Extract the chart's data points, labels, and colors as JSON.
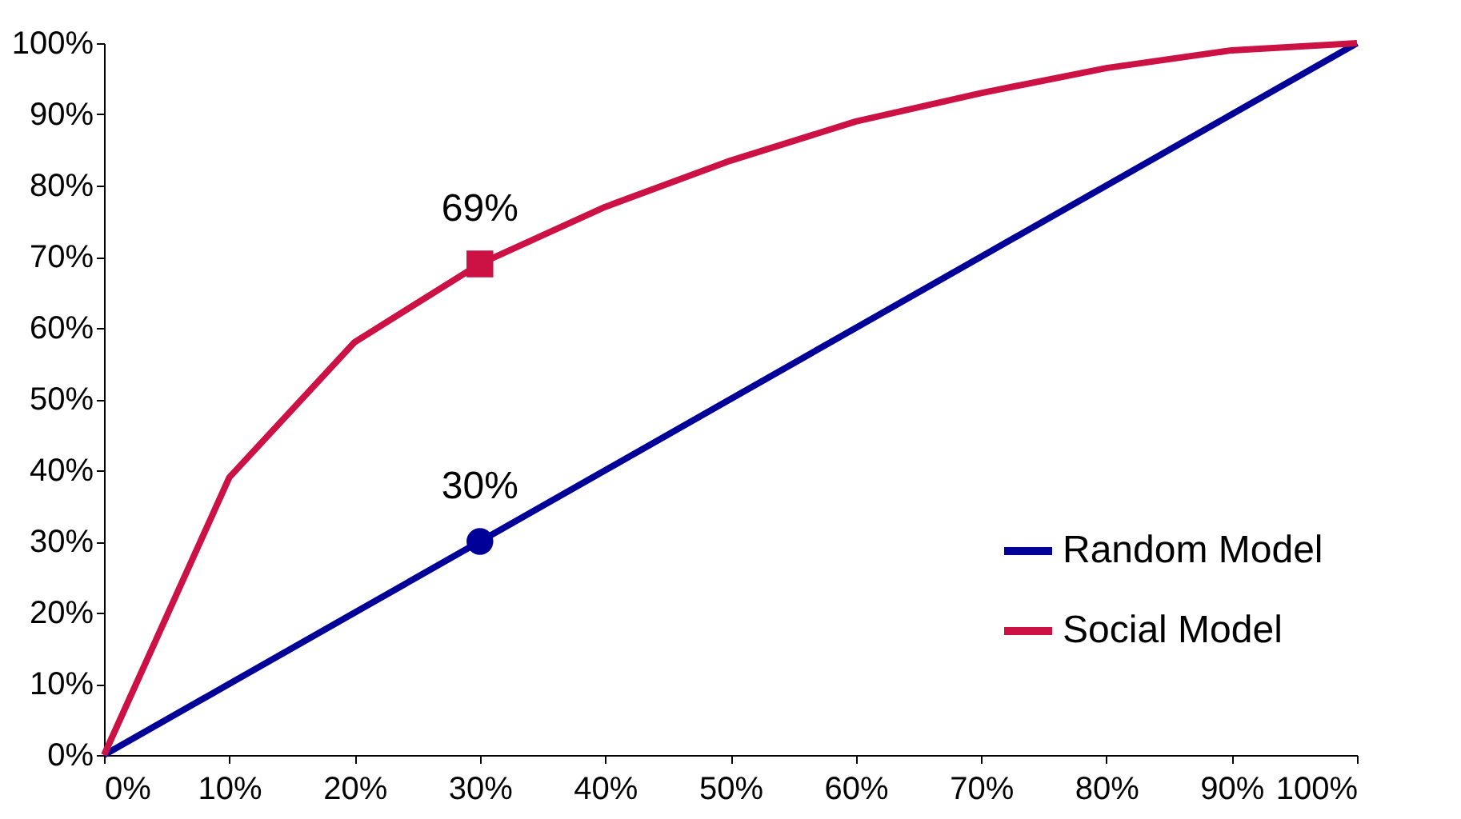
{
  "chart_data": {
    "type": "line",
    "x": [
      0,
      10,
      20,
      30,
      40,
      50,
      60,
      70,
      80,
      90,
      100
    ],
    "series": [
      {
        "name": "Random Model",
        "color": "#000099",
        "values": [
          0,
          10,
          20,
          30,
          40,
          50,
          60,
          70,
          80,
          90,
          100
        ]
      },
      {
        "name": "Social Model",
        "color": "#cc1144",
        "values": [
          0,
          39,
          58,
          69,
          77,
          83.5,
          89,
          93,
          96.5,
          99,
          100
        ]
      },
      {
        "type": "scatter",
        "marker": "circle",
        "color": "#000099",
        "x": [
          30
        ],
        "values": [
          30
        ]
      },
      {
        "type": "scatter",
        "marker": "square",
        "color": "#cc1144",
        "x": [
          30
        ],
        "values": [
          69
        ]
      }
    ],
    "xlim": [
      0,
      100
    ],
    "ylim": [
      0,
      100
    ],
    "xticks": [
      {
        "value": 0,
        "label": "0%"
      },
      {
        "value": 10,
        "label": "10%"
      },
      {
        "value": 20,
        "label": "20%"
      },
      {
        "value": 30,
        "label": "30%"
      },
      {
        "value": 40,
        "label": "40%"
      },
      {
        "value": 50,
        "label": "50%"
      },
      {
        "value": 60,
        "label": "60%"
      },
      {
        "value": 70,
        "label": "70%"
      },
      {
        "value": 80,
        "label": "80%"
      },
      {
        "value": 90,
        "label": "90%"
      },
      {
        "value": 100,
        "label": "100%"
      }
    ],
    "yticks": [
      {
        "value": 0,
        "label": "0%"
      },
      {
        "value": 10,
        "label": "10%"
      },
      {
        "value": 20,
        "label": "20%"
      },
      {
        "value": 30,
        "label": "30%"
      },
      {
        "value": 40,
        "label": "40%"
      },
      {
        "value": 50,
        "label": "50%"
      },
      {
        "value": 60,
        "label": "60%"
      },
      {
        "value": 70,
        "label": "70%"
      },
      {
        "value": 80,
        "label": "80%"
      },
      {
        "value": 90,
        "label": "90%"
      },
      {
        "value": 100,
        "label": "100%"
      }
    ],
    "annotations": [
      {
        "text": "69%",
        "x": 30,
        "y": 69
      },
      {
        "text": "30%",
        "x": 30,
        "y": 30
      }
    ],
    "legend": "bottom right",
    "grid": false,
    "line_style": "solid"
  }
}
